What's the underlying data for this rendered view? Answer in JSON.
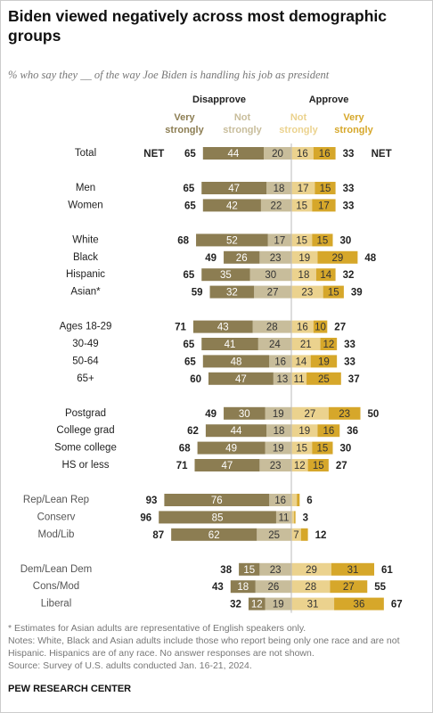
{
  "title": "Biden viewed negatively across most demographic groups",
  "subtitle": "% who say they __ of the way Joe Biden is handling his job as president",
  "chart_data": {
    "type": "diverging-bar",
    "side_labels": [
      "Disapprove",
      "Approve"
    ],
    "net_label": "NET",
    "categories": [
      "Total",
      "Men",
      "Women",
      "White",
      "Black",
      "Hispanic",
      "Asian*",
      "Ages 18-29",
      "30-49",
      "50-64",
      "65+",
      "Postgrad",
      "College grad",
      "Some college",
      "HS or less",
      "Rep/Lean Rep",
      "Conserv",
      "Mod/Lib",
      "Dem/Lean Dem",
      "Cons/Mod",
      "Liberal"
    ],
    "net_disapprove": [
      65,
      65,
      65,
      68,
      49,
      65,
      59,
      71,
      65,
      65,
      60,
      49,
      62,
      68,
      71,
      93,
      96,
      87,
      38,
      43,
      32
    ],
    "net_approve": [
      33,
      33,
      33,
      30,
      48,
      32,
      39,
      27,
      33,
      33,
      37,
      50,
      36,
      30,
      27,
      6,
      3,
      12,
      61,
      55,
      67
    ],
    "series": [
      {
        "name": "Very strongly",
        "side": "disapprove",
        "color": "#8c7d52",
        "values": [
          44,
          47,
          42,
          52,
          26,
          35,
          32,
          43,
          41,
          48,
          47,
          30,
          44,
          49,
          47,
          76,
          85,
          62,
          15,
          18,
          12
        ]
      },
      {
        "name": "Not strongly",
        "side": "disapprove",
        "color": "#c8bd9b",
        "values": [
          20,
          18,
          22,
          17,
          23,
          30,
          27,
          28,
          24,
          16,
          13,
          19,
          18,
          19,
          23,
          16,
          11,
          25,
          23,
          26,
          19
        ]
      },
      {
        "name": "Not strongly",
        "side": "approve",
        "color": "#ebd28e",
        "values": [
          16,
          17,
          15,
          15,
          19,
          18,
          23,
          16,
          21,
          14,
          11,
          27,
          19,
          15,
          12,
          4,
          2,
          7,
          29,
          28,
          31
        ]
      },
      {
        "name": "Very strongly",
        "side": "approve",
        "color": "#d6a72a",
        "values": [
          16,
          15,
          17,
          15,
          29,
          14,
          15,
          10,
          12,
          19,
          25,
          23,
          16,
          15,
          15,
          2,
          1,
          5,
          31,
          27,
          36
        ]
      }
    ]
  },
  "footnotes": [
    "* Estimates for Asian adults are representative of English speakers only.",
    "Notes: White, Black and Asian adults include those who report being only one race and are not Hispanic. Hispanics are of any race. No answer responses are not shown.",
    "Source: Survey of U.S. adults conducted Jan. 16-21, 2024."
  ],
  "source_org": "PEW RESEARCH CENTER"
}
